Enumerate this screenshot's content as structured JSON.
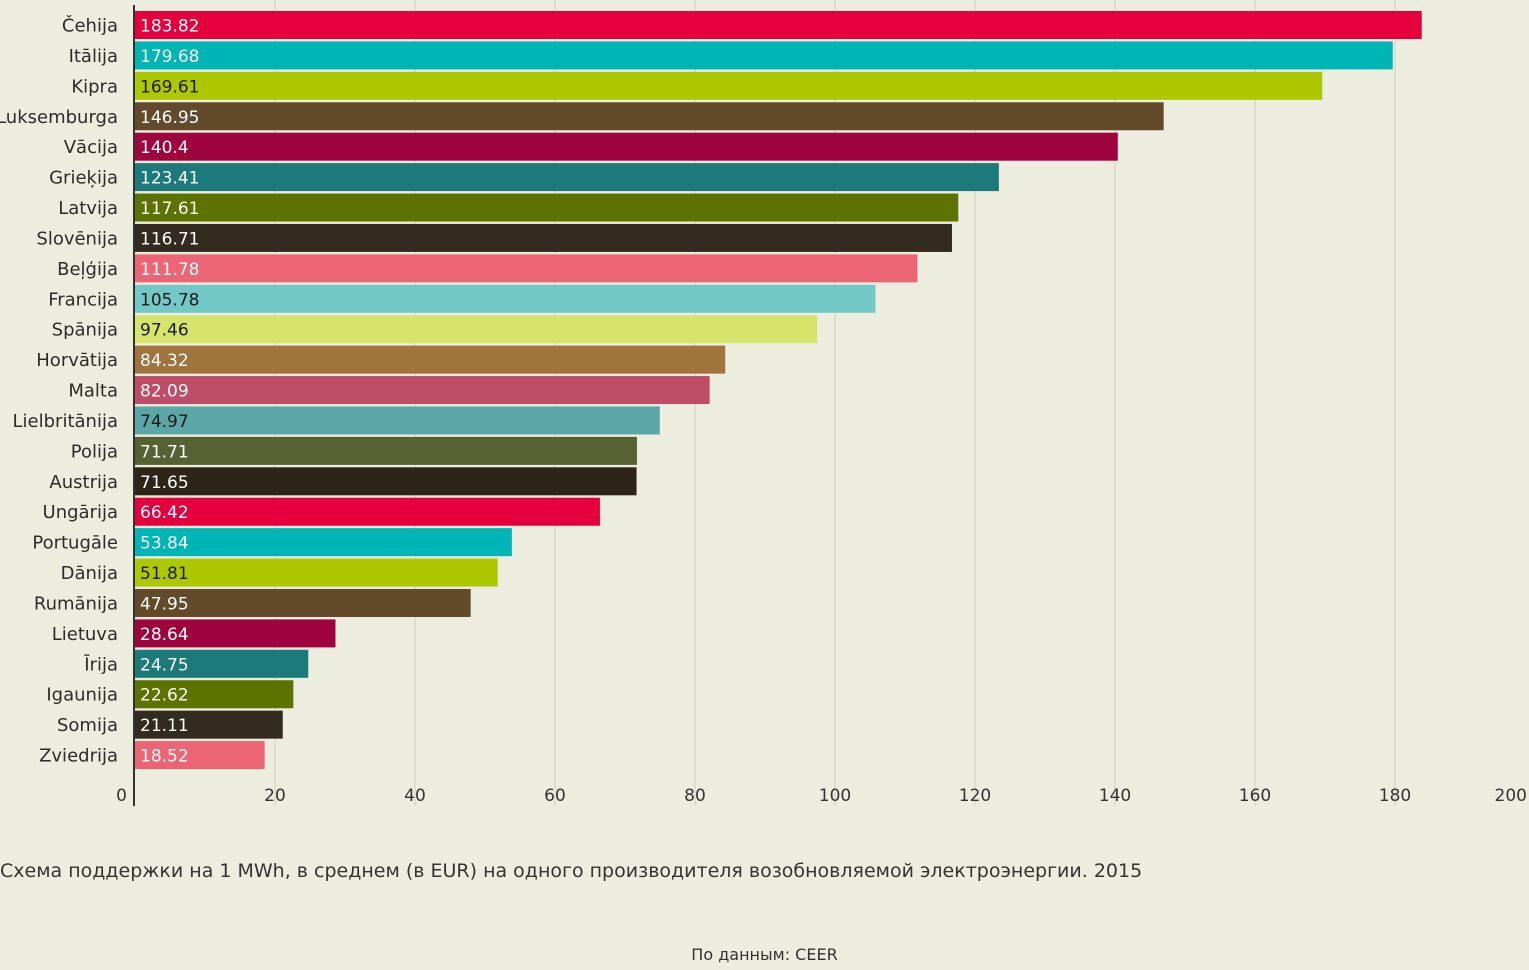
{
  "chart_data": {
    "type": "bar",
    "orientation": "horizontal",
    "categories": [
      "Čehija",
      "Itālija",
      "Kipra",
      "Luksemburga",
      "Vācija",
      "Grieķija",
      "Latvija",
      "Slovēnija",
      "Beļģija",
      "Francija",
      "Spānija",
      "Horvātija",
      "Malta",
      "Lielbritānija",
      "Polija",
      "Austrija",
      "Ungārija",
      "Portugāle",
      "Dānija",
      "Rumānija",
      "Lietuva",
      "Īrija",
      "Igaunija",
      "Somija",
      "Zviedrija"
    ],
    "values": [
      183.82,
      179.68,
      169.61,
      146.95,
      140.4,
      123.41,
      117.61,
      116.71,
      111.78,
      105.78,
      97.46,
      84.32,
      82.09,
      74.97,
      71.71,
      71.65,
      66.42,
      53.84,
      51.81,
      47.95,
      28.64,
      24.75,
      22.62,
      21.11,
      18.52
    ],
    "value_labels": [
      "183.82",
      "179.68",
      "169.61",
      "146.95",
      "140.4",
      "123.41",
      "117.61",
      "116.71",
      "111.78",
      "105.78",
      "97.46",
      "84.32",
      "82.09",
      "74.97",
      "71.71",
      "71.65",
      "66.42",
      "53.84",
      "51.81",
      "47.95",
      "28.64",
      "24.75",
      "22.62",
      "21.11",
      "18.52"
    ],
    "colors": [
      "#e5003d",
      "#00b5b6",
      "#adc800",
      "#624a2b",
      "#a0043f",
      "#1c7b7a",
      "#5c7300",
      "#332b1f",
      "#ec6574",
      "#72c8c7",
      "#d7e46b",
      "#a1733d",
      "#bf4c68",
      "#5ba6a6",
      "#566232",
      "#2e2418",
      "#e5003d",
      "#00b5b6",
      "#adc800",
      "#624a2b",
      "#a0043f",
      "#1c7b7a",
      "#5c7300",
      "#332b1f",
      "#ec6574"
    ],
    "dark_label_colors": [
      "#adc800",
      "#72c8c7",
      "#d7e46b",
      "#5ba6a6"
    ],
    "dark_label_color": "#1a1a1a",
    "light_label_color": "#ffffff",
    "xlim": [
      0,
      200
    ],
    "xticks": [
      0,
      20,
      40,
      60,
      80,
      100,
      120,
      140,
      160,
      180,
      200
    ],
    "xtick_labels": [
      "0",
      "20",
      "40",
      "60",
      "80",
      "100",
      "120",
      "140",
      "160",
      "180",
      "200"
    ],
    "grid": true,
    "gridline_color": "#d8d8cb",
    "title": "",
    "xlabel": "",
    "ylabel": ""
  },
  "caption": "Схема поддержки на 1 MWh, в среднем (в EUR) на одного производителя возобновляемой электроэнергии. 2015",
  "source": "По данным: CEER"
}
